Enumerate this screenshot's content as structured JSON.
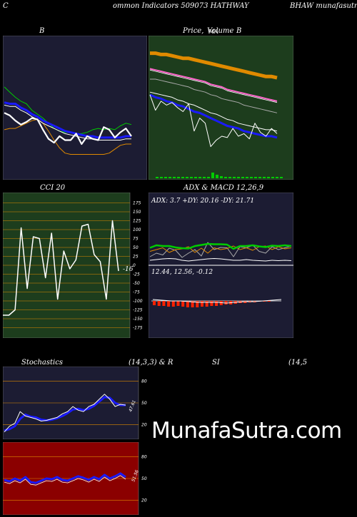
{
  "header": {
    "left": "C",
    "center": "ommon  Indicators 509073 HATHWAY",
    "right": "BHAW munafasutra.thejo"
  },
  "watermark": "MunafaSutra.com",
  "panels": {
    "bb": {
      "title": "B",
      "bg": "#1c1c33"
    },
    "price": {
      "title_a": "Price,",
      "title_b": "Volume",
      "title_c": "MA",
      "title_d": "B",
      "bg": "#1d3d1d"
    },
    "cci": {
      "title": "CCI 20",
      "current_label": "-16",
      "bg": "#1d3d1d",
      "ticks": [
        "175",
        "150",
        "125",
        "100",
        "75",
        "50",
        "25",
        "0",
        "-25",
        "-50",
        "-75",
        "-100",
        "-125",
        "-150",
        "-175"
      ]
    },
    "adx": {
      "title": "ADX  & MACD 12,26,9",
      "adx_text": "ADX: 3.7  +DY: 20.16  -DY: 21.71",
      "macd_text": "12.44,  12.56,  -0.12",
      "bg": "#1c1c33"
    },
    "stoch": {
      "title_a": "Stochastics",
      "title_b": "(14,3,3) & R",
      "title_c": "SI",
      "title_d": "(14,5",
      "value_label": "47.61",
      "ticks": [
        "80",
        "50",
        "20"
      ],
      "bg": "#1c1c33"
    },
    "rsi": {
      "value_label": "51.56",
      "ticks": [
        "80",
        "50",
        "20"
      ],
      "bg": "#8b0000"
    }
  },
  "colors": {
    "orange": "#e08a00",
    "green": "#00cc00",
    "blue": "#1a1aff",
    "white": "#ffffff",
    "pink": "#ff66cc",
    "grey": "#aaaaaa",
    "red": "#ff2200"
  },
  "chart_data": [
    {
      "type": "line",
      "title": "B",
      "series": [
        {
          "values": [
            66,
            62,
            58,
            55,
            53,
            48,
            45,
            42,
            38,
            34,
            32,
            31,
            31,
            30,
            30,
            31,
            33,
            34,
            33,
            34,
            33,
            36,
            38,
            37
          ]
        },
        {
          "values": [
            33,
            34,
            34,
            36,
            38,
            40,
            41,
            38,
            32,
            25,
            19,
            15,
            14,
            14,
            14,
            14,
            14,
            14,
            14,
            15,
            18,
            21,
            22,
            22
          ]
        },
        {
          "values": [
            46,
            44,
            40,
            37,
            39,
            42,
            41,
            33,
            26,
            23,
            28,
            25,
            25,
            30,
            22,
            28,
            26,
            25,
            35,
            33,
            27,
            31,
            34,
            28
          ]
        },
        {
          "values": [
            54,
            53,
            53,
            50,
            48,
            45,
            43,
            40,
            38,
            36,
            34,
            32,
            31,
            30,
            29,
            28,
            28,
            27,
            27,
            27,
            27,
            27,
            28,
            28
          ]
        },
        {
          "values": [
            52,
            51,
            51,
            48,
            46,
            43,
            41,
            38,
            36,
            34,
            32,
            30,
            29,
            28,
            27,
            26,
            26,
            25,
            25,
            25,
            25,
            25,
            26,
            26
          ]
        }
      ]
    },
    {
      "type": "line",
      "title": "Price, Volume MA",
      "series": [
        {
          "values": [
            92,
            92,
            91,
            91,
            90,
            89,
            88,
            88,
            87,
            86,
            85,
            84,
            83,
            82,
            81,
            80,
            79,
            78,
            77,
            76,
            75,
            74,
            74,
            73
          ]
        },
        {
          "values": [
            80,
            79,
            78,
            77,
            76,
            75,
            74,
            73,
            72,
            71,
            70,
            68,
            67,
            66,
            64,
            63,
            62,
            61,
            60,
            59,
            58,
            57,
            56,
            55
          ]
        },
        {
          "values": [
            72,
            72,
            71,
            70,
            69,
            68,
            67,
            66,
            64,
            63,
            62,
            60,
            59,
            57,
            56,
            55,
            54,
            52,
            51,
            50,
            49,
            48,
            47,
            46
          ]
        },
        {
          "values": [
            62,
            61,
            60,
            59,
            58,
            56,
            55,
            53,
            52,
            50,
            48,
            46,
            45,
            43,
            41,
            40,
            38,
            37,
            36,
            35,
            34,
            33,
            33,
            32
          ]
        },
        {
          "values": [
            60,
            58,
            57,
            55,
            54,
            52,
            51,
            49,
            47,
            46,
            44,
            42,
            40,
            38,
            36,
            35,
            34,
            32,
            31,
            30,
            29,
            28,
            28,
            27
          ]
        },
        {
          "values": [
            60,
            48,
            55,
            52,
            54,
            50,
            47,
            53,
            32,
            42,
            38,
            20,
            25,
            28,
            27,
            34,
            28,
            30,
            26,
            38,
            31,
            28,
            34,
            30
          ]
        }
      ]
    },
    {
      "type": "line",
      "title": "CCI 20",
      "ylim": [
        -200,
        200
      ],
      "series": [
        {
          "values": [
            -140,
            -140,
            -125,
            105,
            -65,
            80,
            75,
            -35,
            90,
            -95,
            40,
            -10,
            15,
            110,
            115,
            30,
            10,
            -95,
            125,
            -16
          ]
        }
      ]
    },
    {
      "type": "line",
      "title": "ADX & MACD 12,26,9",
      "series": [
        {
          "values": [
            45,
            52,
            50,
            50,
            46,
            44,
            43,
            50,
            53,
            56,
            55,
            55,
            54,
            42,
            50,
            50,
            52,
            49,
            47,
            51,
            50,
            52,
            50
          ]
        },
        {
          "values": [
            20,
            30,
            25,
            44,
            38,
            18,
            30,
            40,
            22,
            60,
            40,
            46,
            45,
            20,
            48,
            45,
            52,
            35,
            30,
            48,
            40,
            45,
            50
          ]
        },
        {
          "values": [
            35,
            40,
            45,
            32,
            40,
            42,
            48,
            32,
            44,
            30,
            45,
            40,
            43,
            50,
            40,
            45,
            38,
            48,
            50,
            40,
            48,
            42,
            45
          ]
        },
        {
          "values": [
            10,
            12,
            14,
            15,
            14,
            10,
            8,
            10,
            12,
            14,
            15,
            14,
            12,
            10,
            10,
            12,
            10,
            9,
            8,
            10,
            9,
            10,
            9
          ]
        }
      ]
    },
    {
      "type": "line",
      "title": "Stochastics (14,3,3)",
      "series": [
        {
          "values": [
            10,
            18,
            22,
            38,
            32,
            30,
            28,
            25,
            26,
            28,
            30,
            35,
            38,
            45,
            40,
            38,
            45,
            48,
            55,
            62,
            55,
            45,
            48,
            47
          ]
        },
        {
          "values": [
            12,
            14,
            18,
            28,
            34,
            31,
            30,
            27,
            26,
            27,
            29,
            32,
            36,
            41,
            42,
            40,
            42,
            46,
            52,
            58,
            57,
            50,
            47,
            47
          ]
        }
      ]
    },
    {
      "type": "line",
      "title": "RSI (14)",
      "series": [
        {
          "values": [
            48,
            46,
            50,
            47,
            52,
            45,
            44,
            47,
            50,
            49,
            52,
            48,
            47,
            50,
            53,
            51,
            48,
            52,
            49,
            55,
            50,
            53,
            57,
            52
          ]
        }
      ]
    }
  ]
}
